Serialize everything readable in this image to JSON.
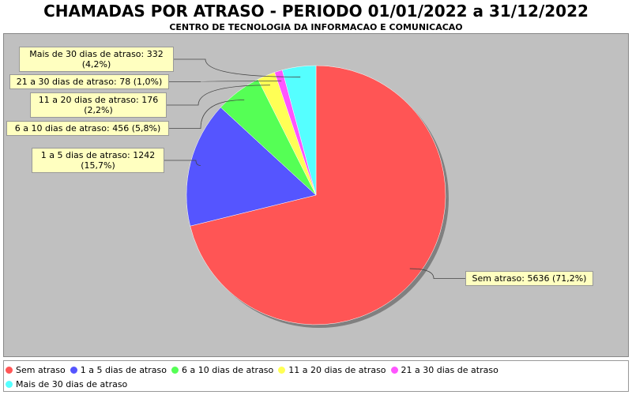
{
  "chart_data": {
    "type": "pie",
    "title": "CHAMADAS POR ATRASO - PERIODO 01/01/2022 a 31/12/2022",
    "subtitle": "CENTRO DE TECNOLOGIA DA INFORMACAO E COMUNICACAO",
    "categories": [
      "Sem atraso",
      "1 a 5 dias de atraso",
      "6 a 10 dias de atraso",
      "11 a 20 dias de atraso",
      "21 a 30 dias de atraso",
      "Mais de 30 dias de atraso"
    ],
    "values": [
      5636,
      1242,
      456,
      176,
      78,
      332
    ],
    "value_labels": [
      "Sem atraso: 5636 (71,2%)",
      "1 a 5 dias de atraso: 1242 (15,7%)",
      "6 a 10 dias de atraso: 456 (5,8%)",
      "11 a 20 dias de atraso: 176 (2,2%)",
      "21 a 30 dias de atraso: 78 (1,0%)",
      "Mais de 30 dias de atraso: 332 (4,2%)"
    ],
    "colors": [
      "#ff5555",
      "#5555ff",
      "#55ff55",
      "#ffff55",
      "#ff55ff",
      "#55ffff"
    ]
  }
}
